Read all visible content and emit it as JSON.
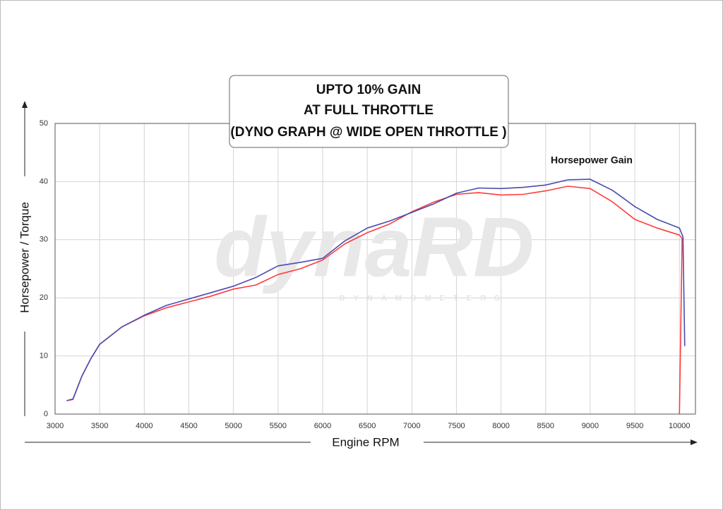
{
  "chart_data": {
    "type": "line",
    "title": [
      "UPTO 10% GAIN",
      "AT FULL THROTTLE",
      "(DYNO GRAPH @ WIDE OPEN THROTTLE )"
    ],
    "x_label": "Engine RPM",
    "y_label": "Horsepower / Torque",
    "annotation": "Horsepower Gain",
    "watermark": [
      "dynaRD",
      "DYNAMOMETERS"
    ],
    "xlim": [
      3000,
      10180
    ],
    "ylim": [
      0,
      50
    ],
    "xticks": [
      3000,
      3500,
      4000,
      4500,
      5000,
      5500,
      6000,
      6500,
      7000,
      7500,
      8000,
      8500,
      9000,
      9500,
      10000
    ],
    "yticks": [
      0,
      10,
      20,
      30,
      40,
      50
    ],
    "grid": true,
    "series": [
      {
        "color": "#4b4bb0",
        "x": [
          3130,
          3200,
          3300,
          3400,
          3500,
          3750,
          4000,
          4250,
          4500,
          4750,
          5000,
          5250,
          5500,
          5750,
          6000,
          6250,
          6500,
          6750,
          7000,
          7250,
          7500,
          7750,
          8000,
          8250,
          8500,
          8750,
          9000,
          9250,
          9500,
          9750,
          10000,
          10040,
          10060
        ],
        "values": [
          2.3,
          2.6,
          6.5,
          9.5,
          12,
          15,
          17,
          18.7,
          19.8,
          20.9,
          22,
          23.5,
          25.5,
          26.1,
          26.8,
          29.8,
          32,
          33.2,
          34.7,
          36.2,
          38,
          38.9,
          38.8,
          39,
          39.4,
          40.3,
          40.4,
          38.5,
          35.7,
          33.5,
          32,
          30.5,
          11.7
        ]
      },
      {
        "color": "#ff3b3b",
        "x": [
          3130,
          3200,
          3300,
          3400,
          3500,
          3750,
          4000,
          4250,
          4500,
          4750,
          5000,
          5250,
          5500,
          5750,
          6000,
          6250,
          6500,
          6750,
          7000,
          7250,
          7500,
          7750,
          8000,
          8250,
          8500,
          8750,
          9000,
          9250,
          9500,
          9750,
          10000,
          10030,
          10015,
          10000
        ],
        "values": [
          2.3,
          2.5,
          6.5,
          9.5,
          12,
          15,
          16.9,
          18.3,
          19.3,
          20.3,
          21.5,
          22.2,
          24,
          25,
          26.5,
          29.3,
          31.2,
          32.7,
          34.8,
          36.5,
          37.8,
          38.1,
          37.7,
          37.8,
          38.4,
          39.2,
          38.8,
          36.5,
          33.5,
          32,
          30.8,
          30.2,
          15,
          0
        ]
      }
    ]
  }
}
